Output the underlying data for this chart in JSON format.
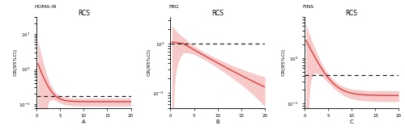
{
  "panels": [
    {
      "title": "RCS",
      "ylabel_top": "HOMA-IR",
      "ylabel_rot": "OR(95%CI)",
      "xlabel": "A",
      "curve_type": "homa",
      "ylim": [
        0.08,
        30
      ],
      "hline_y": 0.17,
      "xticks": [
        0,
        5,
        10,
        15,
        20
      ]
    },
    {
      "title": "RCS",
      "ylabel_top": "FBG",
      "ylabel_rot": "OR(95%CI)",
      "xlabel": "B",
      "curve_type": "fbg",
      "ylim": [
        0.05,
        3.5
      ],
      "hline_y": 1.0,
      "xticks": [
        0,
        5,
        10,
        15,
        20
      ]
    },
    {
      "title": "RCS",
      "ylabel_top": "FINS",
      "ylabel_rot": "OR(95%CI)",
      "xlabel": "C",
      "curve_type": "fins",
      "ylim": [
        0.08,
        8
      ],
      "hline_y": 0.42,
      "xticks": [
        0,
        5,
        10,
        15,
        20
      ]
    }
  ],
  "line_color": "#e03030",
  "shade_color": "#f5b8b8",
  "hline_color": "#222222",
  "background": "#ffffff",
  "fontsize_title": 5.5,
  "fontsize_label": 4.5,
  "fontsize_tick": 4.0
}
